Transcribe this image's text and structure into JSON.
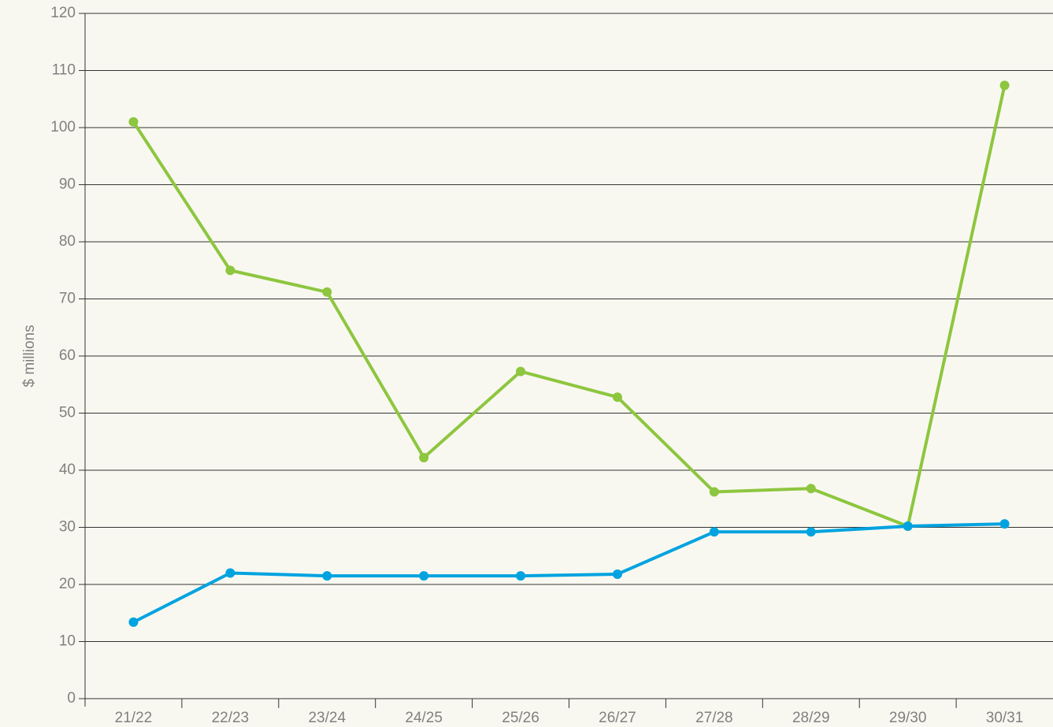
{
  "chart_data": {
    "type": "line",
    "y_axis_label": "$ millions",
    "categories": [
      "21/22",
      "22/23",
      "23/24",
      "24/25",
      "25/26",
      "26/27",
      "27/28",
      "28/29",
      "29/30",
      "30/31"
    ],
    "series": [
      {
        "color": "#8dc63f",
        "values": [
          101,
          75,
          71.2,
          42.2,
          57.3,
          52.8,
          36.2,
          36.8,
          30.2,
          107.4
        ]
      },
      {
        "color": "#00a3e0",
        "values": [
          13.4,
          22,
          21.5,
          21.5,
          21.5,
          21.8,
          29.2,
          29.2,
          30.2,
          30.6
        ]
      }
    ],
    "ylim": [
      0,
      120
    ],
    "yticks": [
      0,
      10,
      20,
      30,
      40,
      50,
      60,
      70,
      80,
      90,
      100,
      110,
      120
    ],
    "grid": true
  }
}
